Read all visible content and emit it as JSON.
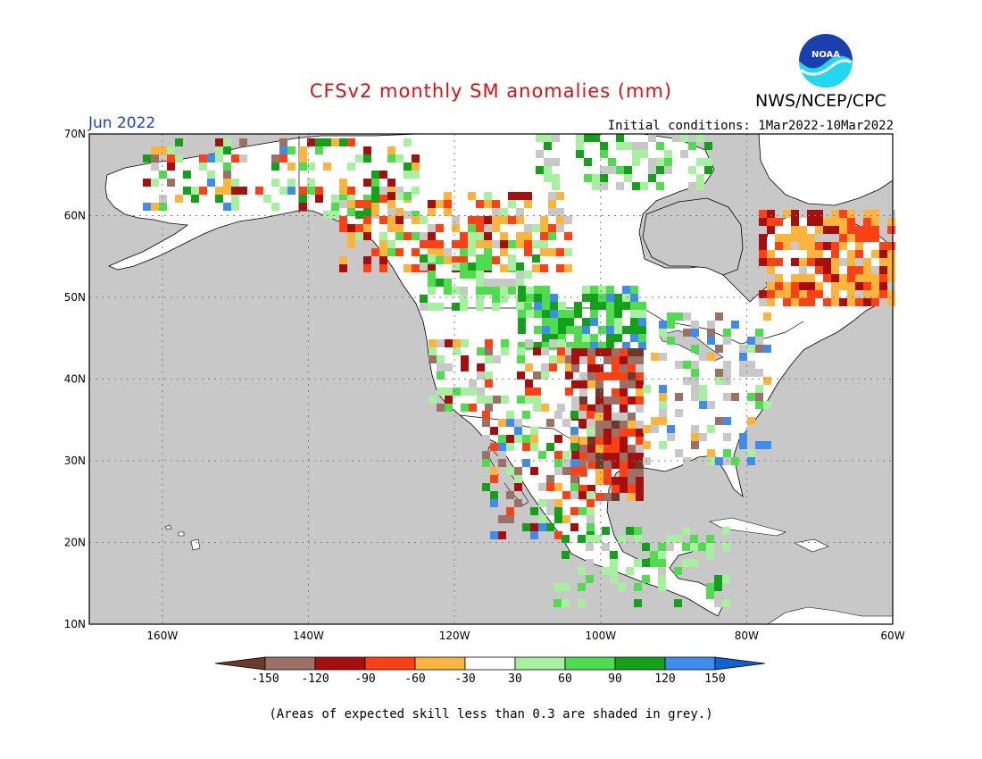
{
  "header": {
    "title": "CFSv2 monthly SM anomalies (mm)",
    "org": "NWS/NCEP/CPC",
    "month": "Jun 2022",
    "initial_conditions": "Initial conditions: 1Mar2022-10Mar2022",
    "logo_text": "NOAA"
  },
  "map": {
    "lat_labels": [
      "70N",
      "60N",
      "50N",
      "40N",
      "30N",
      "20N",
      "10N"
    ],
    "lat_values": [
      70,
      60,
      50,
      40,
      30,
      20,
      10
    ],
    "lon_labels": [
      "160W",
      "140W",
      "120W",
      "100W",
      "80W",
      "60W"
    ],
    "lon_values": [
      -160,
      -140,
      -120,
      -100,
      -80,
      -60
    ],
    "lat_range": [
      10,
      70
    ],
    "lon_range": [
      -170,
      -60
    ],
    "colors": {
      "ocean_grey": "#c8c8c8",
      "land": "#ffffff",
      "grid": "#808080"
    }
  },
  "legend": {
    "tick_labels": [
      "-150",
      "-120",
      "-90",
      "-60",
      "-30",
      "30",
      "60",
      "90",
      "120",
      "150"
    ],
    "bins": [
      {
        "range": "< -150",
        "color": "#6b3a2a"
      },
      {
        "range": "-150 to -120",
        "color": "#9c7165"
      },
      {
        "range": "-120 to -90",
        "color": "#a50f0f"
      },
      {
        "range": "-90 to -60",
        "color": "#ff4015"
      },
      {
        "range": "-60 to -30",
        "color": "#fbb43c"
      },
      {
        "range": "-30 to 30",
        "color": "#ffffff"
      },
      {
        "range": "30 to 60",
        "color": "#a6f0a0"
      },
      {
        "range": "60 to 90",
        "color": "#4fdc4f"
      },
      {
        "range": "90 to 120",
        "color": "#13a11a"
      },
      {
        "range": "120 to 150",
        "color": "#3d8cee"
      },
      {
        "range": "> 150",
        "color": "#1060d8"
      }
    ]
  },
  "footnote": "(Areas of expected skill less than 0.3 are shaded in grey.)"
}
